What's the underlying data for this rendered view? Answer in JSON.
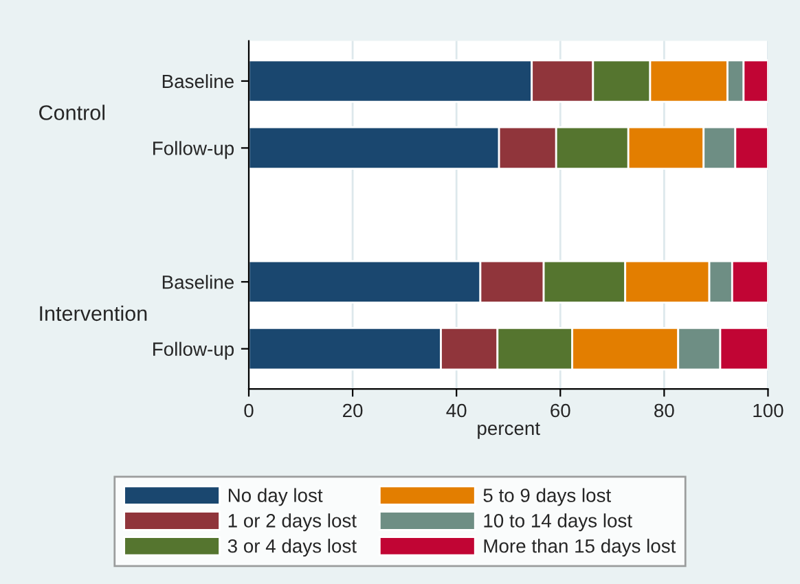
{
  "chart_data": {
    "type": "bar",
    "orientation": "horizontal",
    "stacked": true,
    "xlabel": "percent",
    "categories": [
      "Baseline",
      "Follow-up",
      null,
      "Baseline",
      "Follow-up"
    ],
    "annotations": [
      "Control",
      "Intervention"
    ],
    "series": [
      {
        "name": "No day lost",
        "color": "#1a476f",
        "values": [
          54.5,
          48.2,
          null,
          44.6,
          37.0
        ]
      },
      {
        "name": "1 or 2 days lost",
        "color": "#90353b",
        "values": [
          11.8,
          11.0,
          null,
          12.2,
          10.9
        ]
      },
      {
        "name": "3 or 4 days lost",
        "color": "#55752f",
        "values": [
          11.0,
          13.9,
          null,
          15.7,
          14.4
        ]
      },
      {
        "name": "5 to 9 days lost",
        "color": "#e37e00",
        "values": [
          14.9,
          14.5,
          null,
          16.2,
          20.4
        ]
      },
      {
        "name": "10 to 14 days lost",
        "color": "#6e8e84",
        "values": [
          3.1,
          6.1,
          null,
          4.4,
          8.1
        ]
      },
      {
        "name": "More than 15 days lost",
        "color": "#c10534",
        "values": [
          4.7,
          6.3,
          null,
          6.9,
          9.2
        ]
      }
    ],
    "xlim": [
      0,
      100
    ],
    "xticks": [
      0,
      20,
      40,
      60,
      80,
      100
    ],
    "grid": "x",
    "legend": "bottom"
  }
}
